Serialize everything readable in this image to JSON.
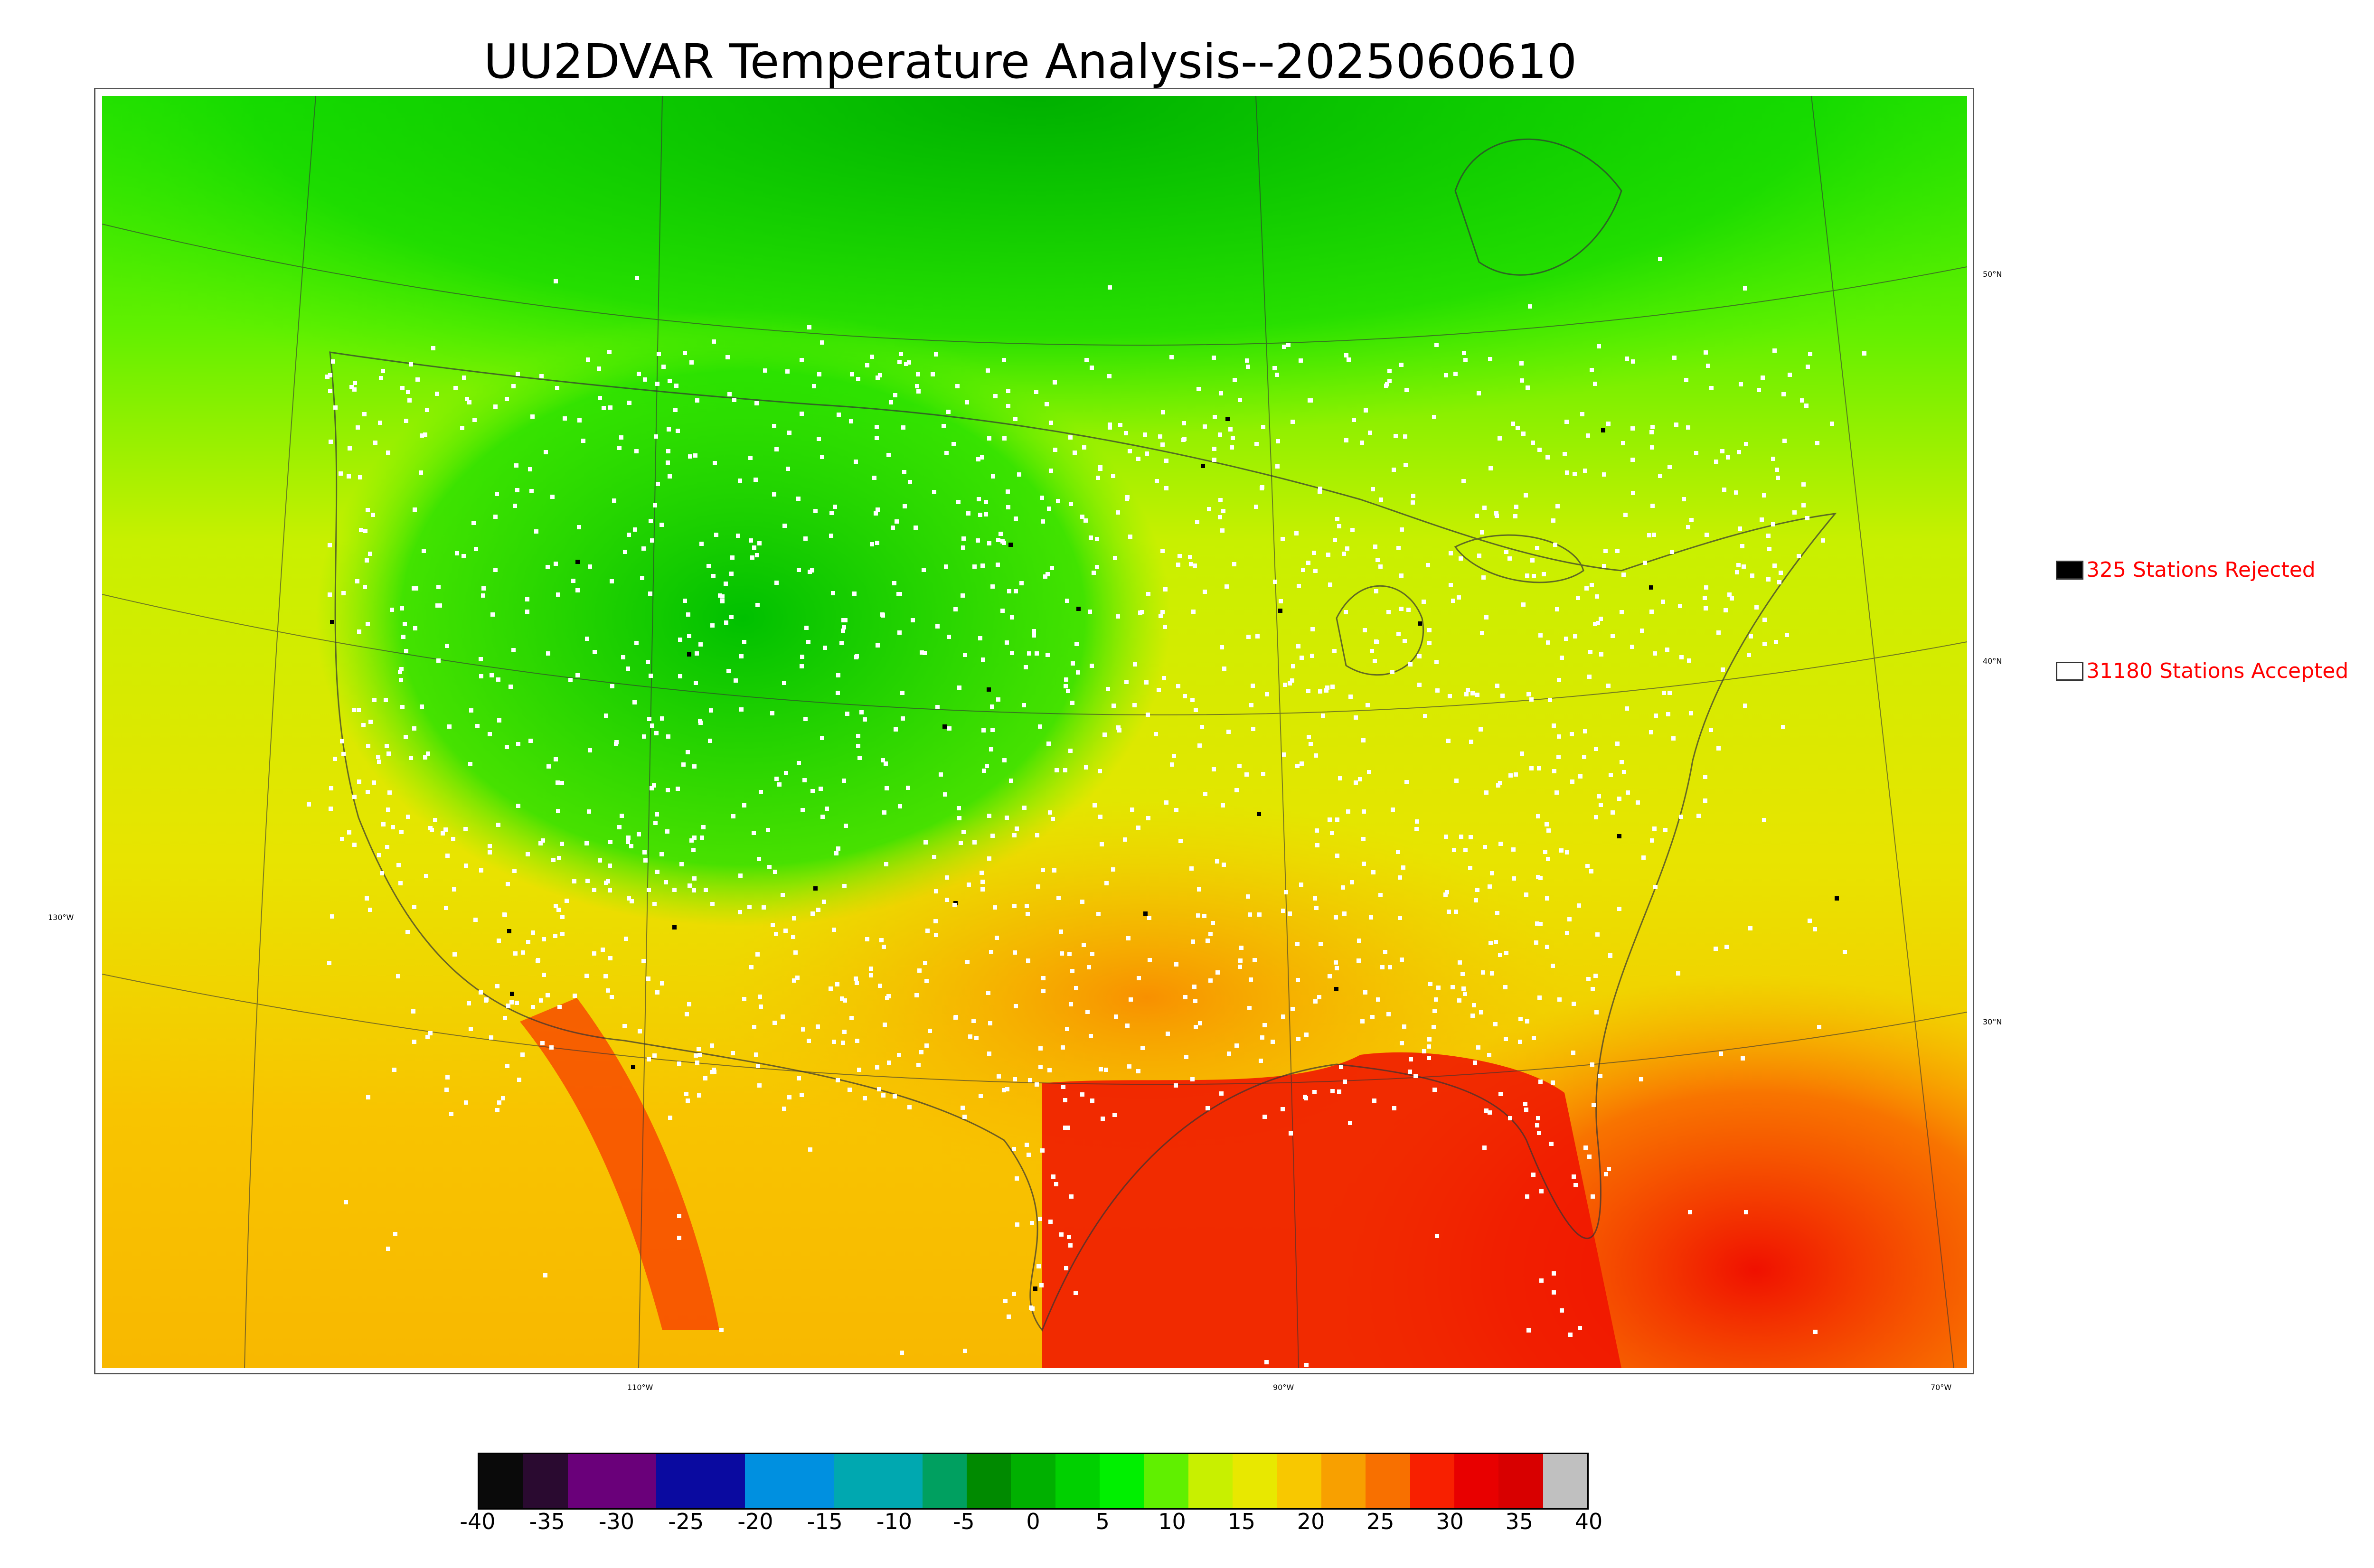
{
  "title": "UU2DVAR Temperature Analysis--2025060610",
  "legend": {
    "rejected": {
      "label": "325 Stations Rejected",
      "swatch": "#000000"
    },
    "accepted": {
      "label": "31180 Stations Accepted",
      "swatch": "#ffffff"
    }
  },
  "graticule": {
    "lat_labels": [
      "50°N",
      "40°N",
      "30°N"
    ],
    "lon_labels": [
      "130°W",
      "110°W",
      "90°W",
      "70°W"
    ]
  },
  "colorbar": {
    "ticks": [
      "-40",
      "-35",
      "-30",
      "-25",
      "-20",
      "-15",
      "-10",
      "-5",
      "0",
      "5",
      "10",
      "15",
      "20",
      "25",
      "30",
      "35",
      "40"
    ],
    "colors": [
      "#0a0a0a",
      "#2a0a30",
      "#6a007a",
      "#6a007a",
      "#0a0aa0",
      "#0a0aa0",
      "#0090e0",
      "#0090e0",
      "#00a8b0",
      "#00a8b0",
      "#00a060",
      "#008a00",
      "#00b000",
      "#00d000",
      "#00f000",
      "#60f000",
      "#c8f000",
      "#e8e800",
      "#f8c800",
      "#f8a000",
      "#f87000",
      "#f82000",
      "#e80000",
      "#d80000",
      "#c0c0c0"
    ]
  },
  "map_colors": {
    "cold": "#00c800",
    "cool": "#40ee00",
    "mild": "#d8f000",
    "warm": "#f8c000",
    "hot": "#f86000",
    "veryhot": "#f01000",
    "station": "#ffffff"
  }
}
